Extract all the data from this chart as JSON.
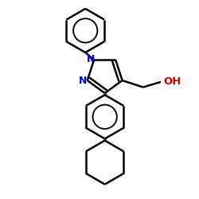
{
  "background_color": "#ffffff",
  "bond_color": "#000000",
  "nitrogen_color": "#0000cc",
  "oxygen_color": "#cc0000",
  "line_width": 1.8,
  "figsize": [
    2.5,
    2.5
  ],
  "dpi": 100,
  "xlim": [
    -1.8,
    2.2
  ],
  "ylim": [
    -3.2,
    2.4
  ]
}
